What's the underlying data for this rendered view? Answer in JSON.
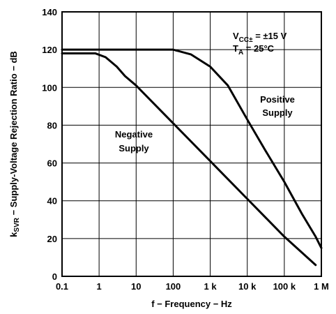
{
  "chart_data": {
    "type": "line",
    "x_scale": "log",
    "xlim": [
      0.1,
      1000000
    ],
    "ylim": [
      0,
      140
    ],
    "grid": true,
    "xlabel": "f − Frequency − Hz",
    "ylabel_prefix": "k",
    "ylabel_sub": "SVR",
    "ylabel_suffix": " − Supply-Voltage Rejection Ratio − dB",
    "x_ticks": [
      {
        "value": 0.1,
        "label": "0.1"
      },
      {
        "value": 1,
        "label": "1"
      },
      {
        "value": 10,
        "label": "10"
      },
      {
        "value": 100,
        "label": "100"
      },
      {
        "value": 1000,
        "label": "1 k"
      },
      {
        "value": 10000,
        "label": "10 k"
      },
      {
        "value": 100000,
        "label": "100 k"
      },
      {
        "value": 1000000,
        "label": "1 M"
      }
    ],
    "y_ticks": [
      {
        "value": 0,
        "label": "0"
      },
      {
        "value": 20,
        "label": "20"
      },
      {
        "value": 40,
        "label": "40"
      },
      {
        "value": 60,
        "label": "60"
      },
      {
        "value": 80,
        "label": "80"
      },
      {
        "value": 100,
        "label": "100"
      },
      {
        "value": 120,
        "label": "120"
      },
      {
        "value": 140,
        "label": "140"
      }
    ],
    "series": [
      {
        "name": "Positive Supply",
        "x": [
          0.1,
          1,
          10,
          100,
          300,
          1000,
          3000,
          10000,
          30000,
          100000,
          300000,
          700000,
          1000000
        ],
        "y": [
          120,
          120,
          120,
          120,
          117.5,
          111,
          101,
          83,
          67,
          50,
          33,
          21,
          15
        ]
      },
      {
        "name": "Negative Supply",
        "x": [
          0.1,
          0.8,
          1.5,
          3,
          5,
          10,
          100,
          1000,
          10000,
          100000,
          700000
        ],
        "y": [
          118,
          118,
          116,
          111,
          106,
          101,
          81,
          61,
          41,
          21,
          6
        ]
      }
    ],
    "annotations": {
      "vcc_main": "V",
      "vcc_sub": "CC±",
      "vcc_value": " = ±15 V",
      "ta_main": "T",
      "ta_sub": "A",
      "ta_value": " = 25°C",
      "positive_line1": "Positive",
      "positive_line2": "Supply",
      "negative_line1": "Negative",
      "negative_line2": "Supply"
    }
  }
}
